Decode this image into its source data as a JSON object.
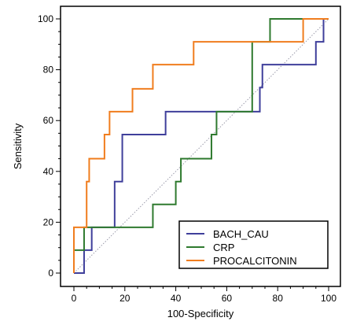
{
  "chart_data": {
    "type": "line",
    "xlabel": "100-Specificity",
    "ylabel": "Sensitivity",
    "xlim": [
      0,
      100
    ],
    "ylim": [
      0,
      100
    ],
    "x_ticks": [
      0,
      20,
      40,
      60,
      80,
      100
    ],
    "y_ticks": [
      0,
      20,
      40,
      60,
      80,
      100
    ],
    "minor_tick_step": 5,
    "grid": false,
    "legend_position": "bottom-right",
    "reference_line": {
      "from": [
        0,
        0
      ],
      "to": [
        100,
        100
      ],
      "style": "dotted",
      "color": "#9a9aaa"
    },
    "series": [
      {
        "name": "BACH_CAU",
        "color": "#3f3f9b",
        "points": [
          [
            0,
            0
          ],
          [
            4,
            0
          ],
          [
            4,
            9
          ],
          [
            7,
            9
          ],
          [
            7,
            18
          ],
          [
            16,
            18
          ],
          [
            16,
            36
          ],
          [
            19,
            36
          ],
          [
            19,
            54.5
          ],
          [
            36,
            54.5
          ],
          [
            36,
            63.5
          ],
          [
            73,
            63.5
          ],
          [
            73,
            73
          ],
          [
            74,
            73
          ],
          [
            74,
            82
          ],
          [
            95,
            82
          ],
          [
            95,
            91
          ],
          [
            98,
            91
          ],
          [
            98,
            100
          ],
          [
            100,
            100
          ]
        ]
      },
      {
        "name": "CRP",
        "color": "#2f7a2f",
        "points": [
          [
            0,
            0
          ],
          [
            0,
            9
          ],
          [
            4,
            9
          ],
          [
            4,
            18
          ],
          [
            31,
            18
          ],
          [
            31,
            27
          ],
          [
            40,
            27
          ],
          [
            40,
            36
          ],
          [
            42,
            36
          ],
          [
            42,
            45
          ],
          [
            54,
            45
          ],
          [
            54,
            54.5
          ],
          [
            56,
            54.5
          ],
          [
            56,
            63.5
          ],
          [
            70,
            63.5
          ],
          [
            70,
            91
          ],
          [
            77,
            91
          ],
          [
            77,
            100
          ],
          [
            100,
            100
          ]
        ]
      },
      {
        "name": "PROCALCITONIN",
        "color": "#f07d1e",
        "points": [
          [
            0,
            0
          ],
          [
            0,
            18
          ],
          [
            5,
            18
          ],
          [
            5,
            36
          ],
          [
            6,
            36
          ],
          [
            6,
            45
          ],
          [
            12,
            45
          ],
          [
            12,
            54.5
          ],
          [
            14,
            54.5
          ],
          [
            14,
            63.5
          ],
          [
            23,
            63.5
          ],
          [
            23,
            72.5
          ],
          [
            31,
            72.5
          ],
          [
            31,
            82
          ],
          [
            47,
            82
          ],
          [
            47,
            91
          ],
          [
            90,
            91
          ],
          [
            90,
            100
          ],
          [
            100,
            100
          ]
        ]
      }
    ]
  }
}
